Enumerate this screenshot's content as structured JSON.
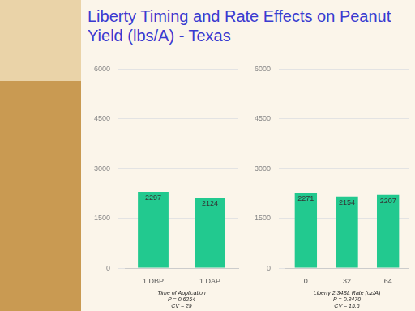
{
  "title": "Liberty Timing and Rate Effects on Peanut Yield (lbs/A) - Texas",
  "chart_data": [
    {
      "type": "bar",
      "xlabel": "Time of Application",
      "annotations": [
        "P = 0.6254",
        "CV = 29"
      ],
      "categories": [
        "1 DBP",
        "1 DAP"
      ],
      "values": [
        2297,
        2124
      ],
      "color": "#22c98f",
      "ylim": [
        0,
        6000
      ],
      "yticks": [
        0,
        1500,
        3000,
        4500,
        6000
      ],
      "grid": true,
      "data_labels": true
    },
    {
      "type": "bar",
      "xlabel": "Liberty 2.34SL Rate (oz/A)",
      "annotations": [
        "P = 0.8470",
        "CV = 15.6"
      ],
      "categories": [
        "0",
        "32",
        "64"
      ],
      "values": [
        2271,
        2154,
        2207
      ],
      "color": "#22c98f",
      "ylim": [
        0,
        6000
      ],
      "yticks": [
        0,
        1500,
        3000,
        4500,
        6000
      ],
      "grid": true,
      "data_labels": true
    }
  ]
}
